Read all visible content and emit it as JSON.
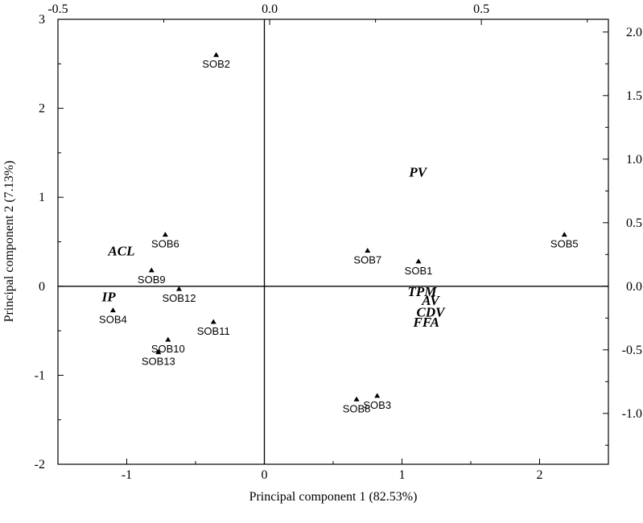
{
  "chart_data": {
    "type": "scatter",
    "title": "",
    "xlabel": "Principal component 1 (82.53%)",
    "ylabel": "Principal component 2 (7.13%)",
    "xlim": [
      -1.5,
      2.5
    ],
    "ylim": [
      -2,
      3
    ],
    "top_xlim": [
      -0.5,
      0.8
    ],
    "right_ylim": [
      -1.4,
      2.1
    ],
    "bottom_ticks": [
      "-1",
      "0",
      "1",
      "2"
    ],
    "left_ticks": [
      "-2",
      "-1",
      "0",
      "1",
      "2",
      "3"
    ],
    "top_ticks": [
      "-0.5",
      "0.0",
      "0.5"
    ],
    "right_ticks": [
      "-1.0",
      "-0.5",
      "0.0",
      "0.5",
      "1.0",
      "1.5",
      "2.0"
    ],
    "grid": false,
    "scores": [
      {
        "label": "SOB1",
        "x": 1.12,
        "y": 0.28
      },
      {
        "label": "SOB2",
        "x": -0.35,
        "y": 2.6
      },
      {
        "label": "SOB3",
        "x": 0.82,
        "y": -1.23
      },
      {
        "label": "SOB4",
        "x": -1.1,
        "y": -0.27
      },
      {
        "label": "SOB5",
        "x": 2.18,
        "y": 0.58
      },
      {
        "label": "SOB6",
        "x": -0.72,
        "y": 0.58
      },
      {
        "label": "SOB7",
        "x": 0.75,
        "y": 0.4
      },
      {
        "label": "SOB8",
        "x": 0.67,
        "y": -1.27
      },
      {
        "label": "SOB9",
        "x": -0.82,
        "y": 0.18
      },
      {
        "label": "SOB10",
        "x": -0.7,
        "y": -0.6
      },
      {
        "label": "SOB11",
        "x": -0.37,
        "y": -0.4
      },
      {
        "label": "SOB12",
        "x": -0.62,
        "y": -0.03
      },
      {
        "label": "SOB13",
        "x": -0.77,
        "y": -0.74
      }
    ],
    "loadings": [
      {
        "label": "PV",
        "x": 0.35,
        "y": 0.9
      },
      {
        "label": "ACL",
        "x": -0.35,
        "y": 0.28
      },
      {
        "label": "IP",
        "x": -0.38,
        "y": -0.08
      },
      {
        "label": "TPM",
        "x": 0.36,
        "y": -0.04
      },
      {
        "label": "AV",
        "x": 0.38,
        "y": -0.11
      },
      {
        "label": "CDV",
        "x": 0.38,
        "y": -0.2
      },
      {
        "label": "FFA",
        "x": 0.37,
        "y": -0.28
      }
    ]
  }
}
